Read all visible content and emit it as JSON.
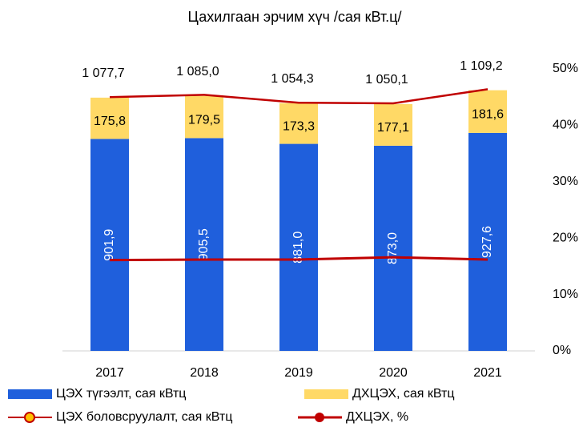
{
  "chart_data": {
    "type": "bar",
    "title": "Цахилгаан эрчим хүч /сая кВт.ц/",
    "categories": [
      "2017",
      "2018",
      "2019",
      "2020",
      "2021"
    ],
    "ylim": [
      0,
      1200
    ],
    "y2lim": [
      0,
      50
    ],
    "y2ticks": [
      {
        "value": 0,
        "label": "0%"
      },
      {
        "value": 10,
        "label": "10%"
      },
      {
        "value": 20,
        "label": "20%"
      },
      {
        "value": 30,
        "label": "30%"
      },
      {
        "value": 40,
        "label": "40%"
      },
      {
        "value": 50,
        "label": "50%"
      }
    ],
    "series": [
      {
        "name": "ЦЭХ түгээлт, сая кВтц",
        "color": "#1f5fdc",
        "values": [
          901.9,
          905.5,
          881.0,
          873.0,
          927.6
        ],
        "value_labels": [
          "901,9",
          "905,5",
          "881,0",
          "873,0",
          "927,6"
        ]
      },
      {
        "name": "ДХЦЭХ, сая кВтц",
        "color": "#ffd966",
        "values": [
          175.8,
          179.5,
          173.3,
          177.1,
          181.6
        ],
        "value_labels": [
          "175,8",
          "179,5",
          "173,3",
          "177,1",
          "181,6"
        ]
      },
      {
        "name": "ЦЭХ боловсруулалт, сая кВтц",
        "type": "line",
        "axis": "y2",
        "color": "#c00000",
        "values": [
          45.0,
          45.4,
          44.0,
          43.9,
          46.4
        ]
      },
      {
        "name": "ДХЦЭХ, %",
        "type": "line",
        "axis": "y2",
        "color": "#c00000",
        "values": [
          16.1,
          16.2,
          16.2,
          16.6,
          16.2
        ]
      }
    ],
    "totals": {
      "values": [
        1077.7,
        1085.0,
        1054.3,
        1050.1,
        1109.2
      ],
      "value_labels": [
        "1 077,7",
        "1 085,0",
        "1 054,3",
        "1 050,1",
        "1 109,2"
      ]
    }
  }
}
